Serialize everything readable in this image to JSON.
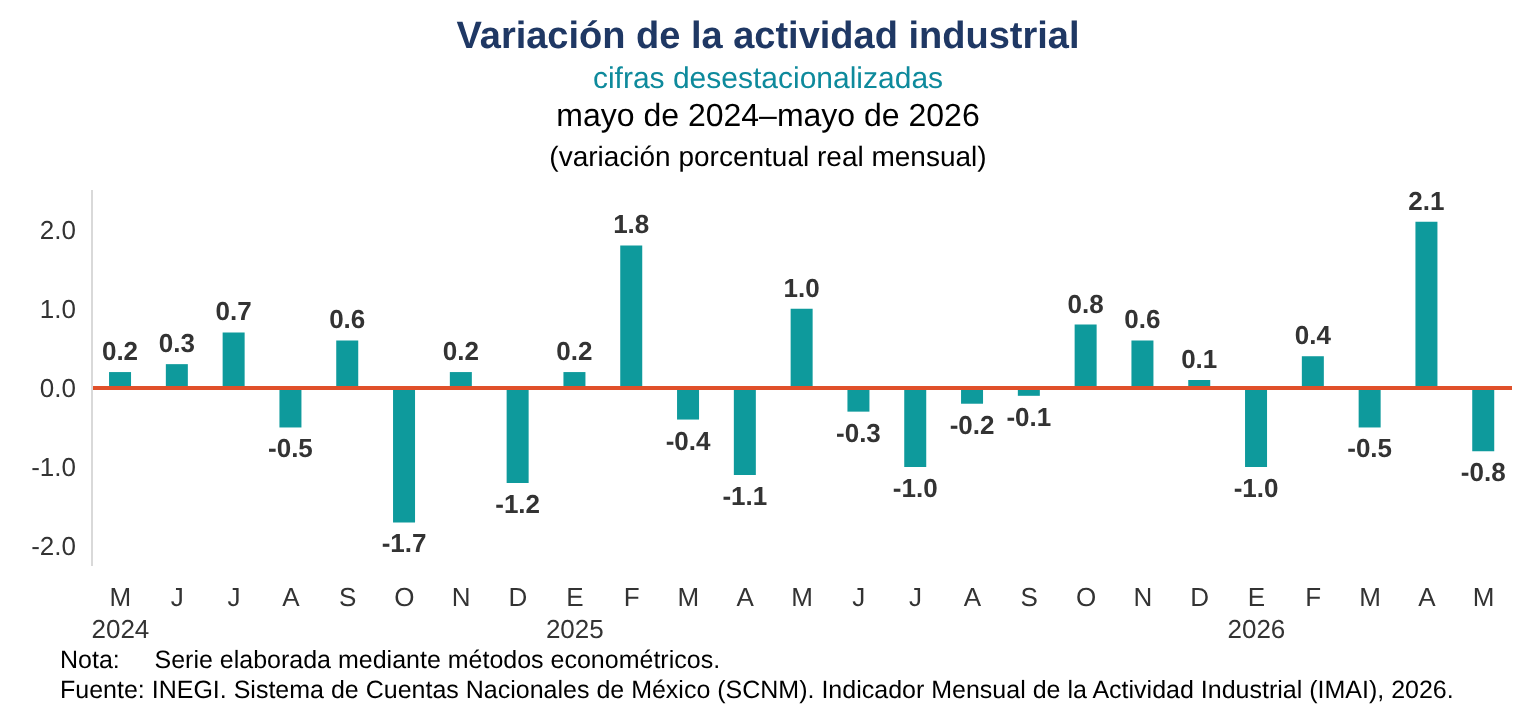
{
  "chart_data": {
    "type": "bar",
    "title": "Variación de la actividad industrial",
    "subtitle": "cifras desestacionalizadas",
    "annotations": [
      "mayo de 2024–mayo de 2026",
      "(variación porcentual real mensual)",
      "Nota:     Serie elaborada mediante métodos econométricos.",
      "Fuente: INEGI. Sistema de Cuentas Nacionales de México (SCNM). Indicador Mensual de la Actividad Industrial (IMAI), 2026."
    ],
    "categories": [
      "M\n2024",
      "J",
      "J",
      "A",
      "S",
      "O",
      "N",
      "D",
      "E\n2025",
      "F",
      "M",
      "A",
      "M",
      "J",
      "J",
      "A",
      "S",
      "O",
      "N",
      "D",
      "E\n2026",
      "F",
      "M",
      "A",
      "M"
    ],
    "values": [
      0.2,
      0.3,
      0.7,
      -0.5,
      0.6,
      -1.7,
      0.2,
      -1.2,
      0.2,
      1.8,
      -0.4,
      -1.1,
      1.0,
      -0.3,
      -1.0,
      -0.2,
      -0.1,
      0.8,
      0.6,
      0.1,
      -1.0,
      0.4,
      -0.5,
      2.1,
      -0.8
    ],
    "value_labels": [
      "0.2",
      "0.3",
      "0.7",
      "-0.5",
      "0.6",
      "-1.7",
      "0.2",
      "-1.2",
      "0.2",
      "1.8",
      "-0.4",
      "-1.1",
      "1.0",
      "-0.3",
      "-1.0",
      "-0.2",
      "-0.1",
      "0.8",
      "0.6",
      "0.1",
      "-1.0",
      "0.4",
      "-0.5",
      "2.1",
      "-0.8"
    ],
    "color": "#0e9a9c",
    "ylim": [
      -2.25,
      2.5
    ],
    "yticks": [
      {
        "value": -2,
        "label": "-2.0"
      },
      {
        "value": -1,
        "label": "-1.0"
      },
      {
        "value": 0,
        "label": "0.0"
      },
      {
        "value": 1,
        "label": "1.0"
      },
      {
        "value": 2,
        "label": "2.0"
      }
    ],
    "ref_lines": [
      {
        "axis": "y",
        "value": 0,
        "color": "#e0502a"
      }
    ],
    "grid": false,
    "legend": false
  }
}
